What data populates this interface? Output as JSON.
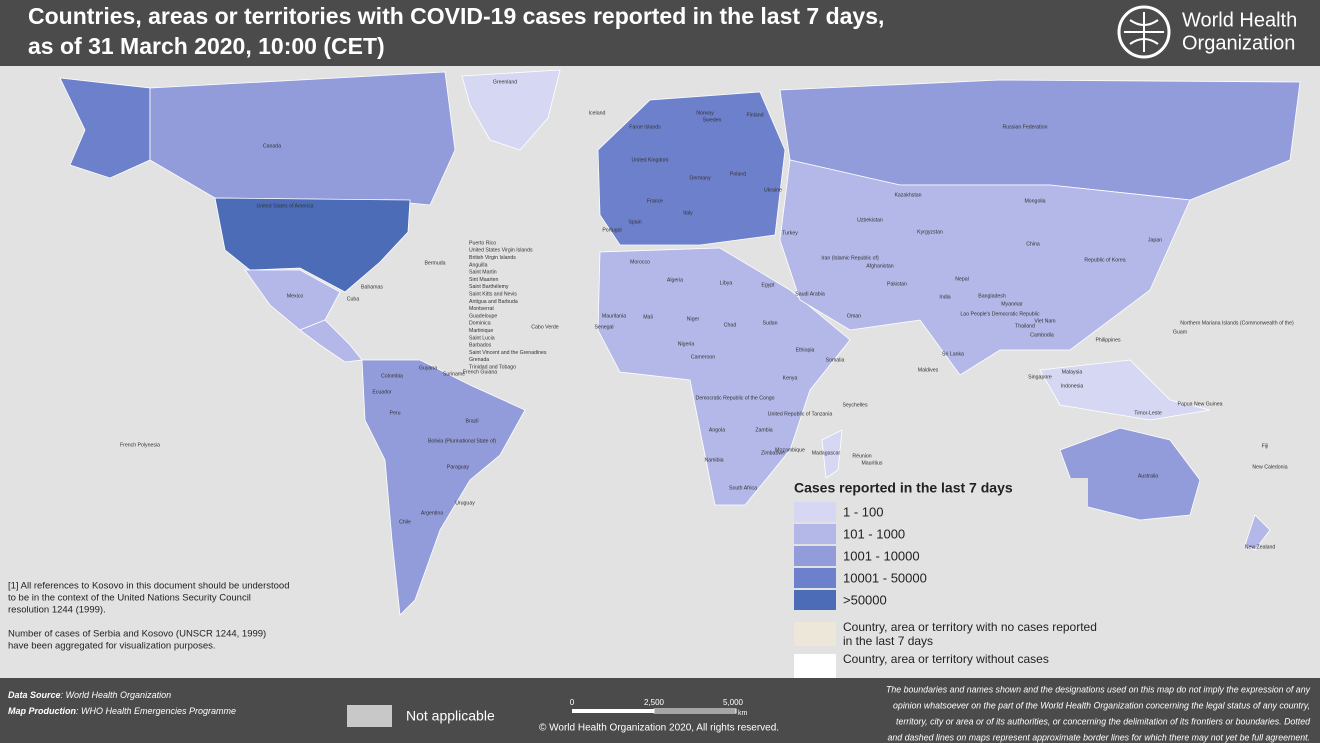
{
  "header": {
    "title_lines": [
      "Countries, areas or territories with COVID-19  cases reported in the last 7 days,",
      "as of 31 March 2020, 10:00 (CET)"
    ],
    "logo_text": [
      "World Health",
      "Organization"
    ]
  },
  "legend": {
    "title": "Cases reported in the last 7 days",
    "items": [
      {
        "label": "1 - 100",
        "color": "#d6d8f3"
      },
      {
        "label": "101 - 1000",
        "color": "#b3b8e8"
      },
      {
        "label": "1001 - 10000",
        "color": "#929cdb"
      },
      {
        "label": "10001 - 50000",
        "color": "#6d80cb"
      },
      {
        "label": ">50000",
        "color": "#4d6cb8"
      }
    ],
    "extra": [
      {
        "lines": [
          "Country, area or territory with no cases reported",
          "in the last 7 days"
        ],
        "color": "#ede7da"
      },
      {
        "lines": [
          "Country, area or territory without cases"
        ],
        "color": "#ffffff"
      }
    ]
  },
  "notes": [
    [
      "[1] All references to Kosovo in this document should be understood",
      "to be in the context of the United Nations Security Council",
      "resolution 1244 (1999)."
    ],
    [
      "Number of cases of Serbia and Kosovo (UNSCR 1244, 1999)",
      " have been aggregated for visualization purposes."
    ]
  ],
  "footer": {
    "source_label": "Data Source",
    "source": ": World Health Organization",
    "production_label": "Map Production",
    "production": ": WHO Health Emergencies Programme",
    "not_applicable": "Not applicable",
    "scale": [
      "0",
      "2,500",
      "5,000",
      "km"
    ],
    "copyright": "© World Health Organization  2020,  All rights reserved.",
    "disclaimer": [
      "The boundaries and names shown and the designations used on this map do not imply the expression of any",
      "opinion whatsoever on the part of the World Health Organization concerning the legal status of any country,",
      "territory, city or area or of its authorities, or concerning the delimitation of its frontiers or boundaries. Dotted",
      "and dashed lines on maps represent approximate border lines for which there may not yet be full agreement."
    ]
  },
  "map_labels": [
    "Greenland",
    "Iceland",
    "Faroe Islands",
    "Canada",
    "United States of America",
    "Mexico",
    "Bahamas",
    "Cuba",
    "Bermuda",
    "Brazil",
    "Bolivia (Plurinational State of)",
    "Paraguay",
    "Argentina",
    "Chile",
    "Uruguay",
    "Peru",
    "Ecuador",
    "Colombia",
    "Guyana",
    "Suriname",
    "French Guiana",
    "French Polynesia",
    "Russian Federation",
    "Kazakhstan",
    "Mongolia",
    "China",
    "Japan",
    "Republic of Korea",
    "India",
    "Pakistan",
    "Afghanistan",
    "Iran (Islamic Republic of)",
    "Saudi Arabia",
    "Egypt",
    "Libya",
    "Algeria",
    "Niger",
    "Chad",
    "Sudan",
    "Ethiopia",
    "Nigeria",
    "Cameroon",
    "Democratic Republic of the Congo",
    "Angola",
    "Namibia",
    "South Africa",
    "Madagascar",
    "Mozambique",
    "Kenya",
    "Somalia",
    "United Republic of Tanzania",
    "Zambia",
    "Zimbabwe",
    "Australia",
    "New Zealand",
    "Indonesia",
    "Philippines",
    "Malaysia",
    "Thailand",
    "Viet Nam",
    "Sri Lanka",
    "Nepal",
    "Bangladesh",
    "Myanmar",
    "Turkey",
    "Ukraine",
    "Poland",
    "Germany",
    "France",
    "Spain",
    "Portugal",
    "Italy",
    "Sweden",
    "Finland",
    "Norway",
    "United Kingdom",
    "Morocco",
    "Mali",
    "Mauritania",
    "Senegal",
    "Oman",
    "Kyrgyzstan",
    "Uzbekistan",
    "Papua New Guinea",
    "Fiji",
    "New Caledonia",
    "Guam",
    "Northern Mariana Islands (Commonwealth of the)",
    "Cabo Verde",
    "Seychelles",
    "Mauritius",
    "Réunion",
    "Maldives",
    "Singapore",
    "Timor-Leste",
    "Lao People's Democratic Republic",
    "Cambodia",
    "Puerto Rico",
    "United States Virgin Islands",
    "British Virgin Islands",
    "Anguilla",
    "Saint Martin",
    "Sint Maarten",
    "Saint Barthélemy",
    "Saint Kitts and Nevis",
    "Antigua and Barbuda",
    "Montserrat",
    "Guadeloupe",
    "Dominica",
    "Martinique",
    "Saint Lucia",
    "Barbados",
    "Saint Vincent and the Grenadines",
    "Grenada",
    "Trinidad and Tobago"
  ]
}
